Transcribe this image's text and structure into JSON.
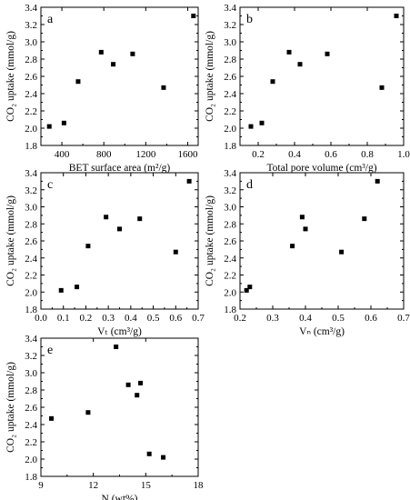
{
  "chart_data": [
    {
      "type": "scatter",
      "panel_label": "a",
      "xlabel": "BET surface area (m²/g)",
      "ylabel": "CO₂ uptake (mmol/g)",
      "xlim": [
        200,
        1700
      ],
      "ylim": [
        1.8,
        3.4
      ],
      "xticks": [
        "400",
        "800",
        "1200",
        "1600"
      ],
      "yticks": [
        "1.8",
        "2.0",
        "2.2",
        "2.4",
        "2.6",
        "2.8",
        "3.0",
        "3.2",
        "3.4"
      ],
      "x": [
        280,
        420,
        555,
        775,
        890,
        1075,
        1370,
        1655
      ],
      "y": [
        2.02,
        2.06,
        2.54,
        2.88,
        2.74,
        2.86,
        2.47,
        3.3
      ]
    },
    {
      "type": "scatter",
      "panel_label": "b",
      "xlabel": "Total pore volume (cm³/g)",
      "ylabel": "CO₂ uptake (mmol/g)",
      "xlim": [
        0.1,
        1.0
      ],
      "ylim": [
        1.8,
        3.4
      ],
      "xticks": [
        "0.2",
        "0.4",
        "0.6",
        "0.8",
        "1.0"
      ],
      "yticks": [
        "1.8",
        "2.0",
        "2.2",
        "2.4",
        "2.6",
        "2.8",
        "3.0",
        "3.2",
        "3.4"
      ],
      "x": [
        0.16,
        0.22,
        0.28,
        0.37,
        0.43,
        0.58,
        0.88,
        0.96
      ],
      "y": [
        2.02,
        2.06,
        2.54,
        2.88,
        2.74,
        2.86,
        2.47,
        3.3
      ]
    },
    {
      "type": "scatter",
      "panel_label": "c",
      "xlabel": "Vₜ (cm³/g)",
      "ylabel": "CO₂ uptake (mmol/g)",
      "xlim": [
        0.0,
        0.7
      ],
      "ylim": [
        1.8,
        3.4
      ],
      "xticks": [
        "0.0",
        "0.1",
        "0.2",
        "0.3",
        "0.4",
        "0.5",
        "0.6",
        "0.7"
      ],
      "yticks": [
        "1.8",
        "2.0",
        "2.2",
        "2.4",
        "2.6",
        "2.8",
        "3.0",
        "3.2",
        "3.4"
      ],
      "x": [
        0.09,
        0.16,
        0.21,
        0.29,
        0.35,
        0.44,
        0.6,
        0.66
      ],
      "y": [
        2.02,
        2.06,
        2.54,
        2.88,
        2.74,
        2.86,
        2.47,
        3.3
      ]
    },
    {
      "type": "scatter",
      "panel_label": "d",
      "xlabel": "Vₙ (cm³/g)",
      "ylabel": "CO₂ uptake (mmol/g)",
      "xlim": [
        0.2,
        0.7
      ],
      "ylim": [
        1.8,
        3.4
      ],
      "xticks": [
        "0.2",
        "0.3",
        "0.4",
        "0.5",
        "0.6",
        "0.7"
      ],
      "yticks": [
        "1.8",
        "2.0",
        "2.2",
        "2.4",
        "2.6",
        "2.8",
        "3.0",
        "3.2",
        "3.4"
      ],
      "x": [
        0.22,
        0.23,
        0.36,
        0.39,
        0.4,
        0.51,
        0.58,
        0.62
      ],
      "y": [
        2.02,
        2.06,
        2.54,
        2.88,
        2.74,
        2.47,
        2.86,
        3.3
      ]
    },
    {
      "type": "scatter",
      "panel_label": "e",
      "xlabel": "N (wt%)",
      "ylabel": "CO₂ uptake (mmol/g)",
      "xlim": [
        9,
        18
      ],
      "ylim": [
        1.8,
        3.4
      ],
      "xticks": [
        "9",
        "12",
        "15",
        "18"
      ],
      "yticks": [
        "1.8",
        "2.0",
        "2.2",
        "2.4",
        "2.6",
        "2.8",
        "3.0",
        "3.2",
        "3.4"
      ],
      "x": [
        9.6,
        11.7,
        13.3,
        14.0,
        14.5,
        14.7,
        15.2,
        16.0
      ],
      "y": [
        2.47,
        2.54,
        3.3,
        2.86,
        2.74,
        2.88,
        2.06,
        2.02
      ]
    }
  ]
}
